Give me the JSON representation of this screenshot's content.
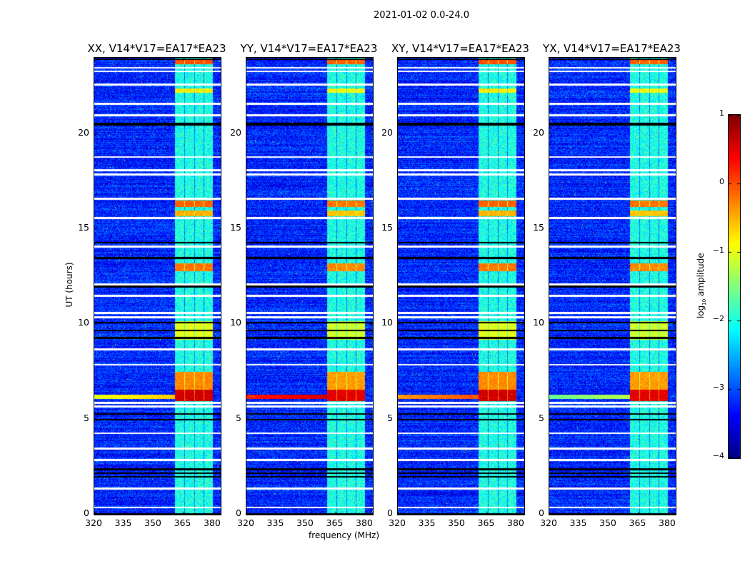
{
  "suptitle": "2021-01-02 0.0-24.0",
  "chart_data": {
    "type": "heatmap",
    "title": "2021-01-02 0.0-24.0",
    "xlabel": "frequency (MHz)",
    "ylabel": "UT (hours)",
    "xlim": [
      320,
      384
    ],
    "ylim": [
      0,
      24
    ],
    "xticks": [
      "320",
      "335",
      "350",
      "365",
      "380"
    ],
    "yticks": [
      "0",
      "5",
      "10",
      "15",
      "20"
    ],
    "panels": [
      {
        "title": "XX, V14*V17=EA17*EA23",
        "low_freq_rfi": -1.0
      },
      {
        "title": "YY, V14*V17=EA17*EA23",
        "low_freq_rfi": 0.2
      },
      {
        "title": "XY, V14*V17=EA17*EA23",
        "low_freq_rfi": -0.4
      },
      {
        "title": "YX, V14*V17=EA17*EA23",
        "low_freq_rfi": -1.6
      }
    ],
    "background_log_amp": -3.2,
    "bright_band_mhz": [
      360.5,
      380
    ],
    "bright_band_log_amp": -2.0,
    "events": [
      {
        "t": [
          6.0,
          6.6
        ],
        "log_amp": 0.6
      },
      {
        "t": [
          6.6,
          7.5
        ],
        "log_amp": -0.3
      },
      {
        "t": [
          12.8,
          13.2
        ],
        "log_amp": -0.2
      },
      {
        "t": [
          16.2,
          16.5
        ],
        "log_amp": -0.1
      },
      {
        "t": [
          15.7,
          16.0
        ],
        "log_amp": -0.5
      },
      {
        "t": [
          9.2,
          10.2
        ],
        "log_amp": -1.0
      },
      {
        "t": [
          22.2,
          22.4
        ],
        "log_amp": -0.8
      },
      {
        "t": [
          23.7,
          23.9
        ],
        "log_amp": 0.0
      }
    ],
    "flagged_white_hours": [
      0.4,
      1.4,
      2.9,
      3.5,
      4.3,
      5.7,
      5.9,
      7.9,
      8.7,
      10.4,
      10.6,
      11.5,
      12.1,
      14.1,
      15.6,
      16.6,
      17.9,
      18.1,
      18.8,
      21.0,
      21.6,
      22.6,
      23.3,
      23.5
    ],
    "flagged_black_hours": [
      0.05,
      2.0,
      2.2,
      2.4,
      5.0,
      5.3,
      9.3,
      9.7,
      10.1,
      12.0,
      13.5,
      14.3,
      20.5,
      20.55,
      23.95
    ],
    "colorbar": {
      "label": "log10 amplitude",
      "label_main": "log",
      "label_sub": "10",
      "label_rest": " amplitude",
      "range": [
        -4,
        1
      ],
      "ticks": [
        "1",
        "0",
        "−1",
        "−2",
        "−3",
        "−4"
      ],
      "colormap": "jet"
    }
  }
}
